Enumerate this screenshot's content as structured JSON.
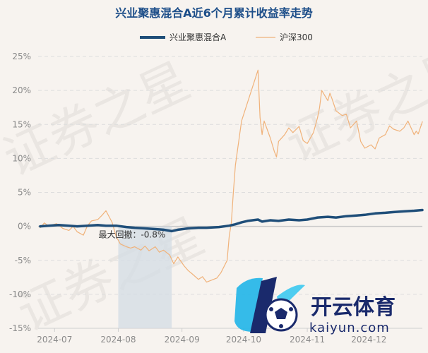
{
  "chart_data": {
    "type": "line",
    "title": "兴业聚惠混合A近6个月累计收益率走势",
    "legend_position": "top-center",
    "grid": true,
    "x_range": [
      "2024-06-23",
      "2024-12-27"
    ],
    "ylim": [
      -15,
      25
    ],
    "y_ticks": [
      25,
      20,
      15,
      10,
      5,
      0,
      -5,
      -10,
      -15
    ],
    "y_tick_labels": [
      "25%",
      "20%",
      "15%",
      "10%",
      "5%",
      "0%",
      "-5%",
      "-10%",
      "-15%"
    ],
    "x_ticks": [
      {
        "date": "2024-07-01",
        "label": "2024-07"
      },
      {
        "date": "2024-08-01",
        "label": "2024-08"
      },
      {
        "date": "2024-09-01",
        "label": "2024-09"
      },
      {
        "date": "2024-10-01",
        "label": "2024-10"
      },
      {
        "date": "2024-11-01",
        "label": "2024-11"
      },
      {
        "date": "2024-12-01",
        "label": "2024-12"
      }
    ],
    "drawdown": {
      "label": "最大回撤：-0.8%",
      "start": "2024-08-01",
      "end": "2024-08-27"
    },
    "series": [
      {
        "name": "兴业聚惠混合A",
        "color": "#1f4e79",
        "points": [
          [
            "2024-06-24",
            0.0
          ],
          [
            "2024-06-28",
            0.1
          ],
          [
            "2024-07-03",
            0.2
          ],
          [
            "2024-07-08",
            0.1
          ],
          [
            "2024-07-12",
            0.0
          ],
          [
            "2024-07-17",
            0.1
          ],
          [
            "2024-07-22",
            0.2
          ],
          [
            "2024-07-26",
            0.1
          ],
          [
            "2024-07-31",
            0.1
          ],
          [
            "2024-08-05",
            -0.1
          ],
          [
            "2024-08-09",
            -0.2
          ],
          [
            "2024-08-14",
            -0.3
          ],
          [
            "2024-08-19",
            -0.4
          ],
          [
            "2024-08-23",
            -0.5
          ],
          [
            "2024-08-27",
            -0.7
          ],
          [
            "2024-08-30",
            -0.5
          ],
          [
            "2024-09-04",
            -0.3
          ],
          [
            "2024-09-09",
            -0.2
          ],
          [
            "2024-09-13",
            -0.2
          ],
          [
            "2024-09-19",
            -0.1
          ],
          [
            "2024-09-24",
            0.1
          ],
          [
            "2024-09-27",
            0.3
          ],
          [
            "2024-09-30",
            0.6
          ],
          [
            "2024-10-03",
            0.8
          ],
          [
            "2024-10-08",
            1.0
          ],
          [
            "2024-10-10",
            0.7
          ],
          [
            "2024-10-14",
            0.9
          ],
          [
            "2024-10-18",
            0.8
          ],
          [
            "2024-10-23",
            1.0
          ],
          [
            "2024-10-28",
            0.9
          ],
          [
            "2024-11-01",
            1.0
          ],
          [
            "2024-11-06",
            1.3
          ],
          [
            "2024-11-11",
            1.4
          ],
          [
            "2024-11-15",
            1.3
          ],
          [
            "2024-11-20",
            1.5
          ],
          [
            "2024-11-25",
            1.6
          ],
          [
            "2024-11-29",
            1.7
          ],
          [
            "2024-12-04",
            1.9
          ],
          [
            "2024-12-09",
            2.0
          ],
          [
            "2024-12-13",
            2.1
          ],
          [
            "2024-12-18",
            2.2
          ],
          [
            "2024-12-23",
            2.3
          ],
          [
            "2024-12-27",
            2.4
          ]
        ]
      },
      {
        "name": "沪深300",
        "color": "#f0b27a",
        "points": [
          [
            "2024-06-24",
            -0.2
          ],
          [
            "2024-06-26",
            0.5
          ],
          [
            "2024-06-28",
            0.1
          ],
          [
            "2024-07-02",
            0.4
          ],
          [
            "2024-07-05",
            -0.3
          ],
          [
            "2024-07-08",
            -0.6
          ],
          [
            "2024-07-10",
            0.0
          ],
          [
            "2024-07-12",
            -0.8
          ],
          [
            "2024-07-15",
            -1.3
          ],
          [
            "2024-07-17",
            0.1
          ],
          [
            "2024-07-19",
            0.8
          ],
          [
            "2024-07-22",
            1.0
          ],
          [
            "2024-07-24",
            1.6
          ],
          [
            "2024-07-26",
            2.3
          ],
          [
            "2024-07-29",
            0.6
          ],
          [
            "2024-07-31",
            -1.5
          ],
          [
            "2024-08-02",
            -2.6
          ],
          [
            "2024-08-05",
            -3.0
          ],
          [
            "2024-08-07",
            -3.2
          ],
          [
            "2024-08-09",
            -3.0
          ],
          [
            "2024-08-12",
            -3.5
          ],
          [
            "2024-08-14",
            -2.9
          ],
          [
            "2024-08-16",
            -3.6
          ],
          [
            "2024-08-19",
            -3.0
          ],
          [
            "2024-08-21",
            -3.8
          ],
          [
            "2024-08-23",
            -3.5
          ],
          [
            "2024-08-26",
            -4.2
          ],
          [
            "2024-08-28",
            -5.5
          ],
          [
            "2024-08-30",
            -4.5
          ],
          [
            "2024-09-02",
            -5.8
          ],
          [
            "2024-09-04",
            -6.5
          ],
          [
            "2024-09-06",
            -7.0
          ],
          [
            "2024-09-09",
            -7.8
          ],
          [
            "2024-09-11",
            -7.4
          ],
          [
            "2024-09-13",
            -8.2
          ],
          [
            "2024-09-18",
            -7.6
          ],
          [
            "2024-09-20",
            -6.8
          ],
          [
            "2024-09-23",
            -5.0
          ],
          [
            "2024-09-24",
            -1.5
          ],
          [
            "2024-09-25",
            0.5
          ],
          [
            "2024-09-26",
            5.0
          ],
          [
            "2024-09-27",
            9.0
          ],
          [
            "2024-09-30",
            15.5
          ],
          [
            "2024-10-08",
            23.0
          ],
          [
            "2024-10-09",
            16.0
          ],
          [
            "2024-10-10",
            13.5
          ],
          [
            "2024-10-11",
            15.5
          ],
          [
            "2024-10-14",
            13.0
          ],
          [
            "2024-10-15",
            12.0
          ],
          [
            "2024-10-16",
            11.0
          ],
          [
            "2024-10-17",
            10.2
          ],
          [
            "2024-10-18",
            12.5
          ],
          [
            "2024-10-21",
            13.5
          ],
          [
            "2024-10-23",
            14.5
          ],
          [
            "2024-10-25",
            13.8
          ],
          [
            "2024-10-28",
            14.7
          ],
          [
            "2024-10-30",
            12.6
          ],
          [
            "2024-11-01",
            12.2
          ],
          [
            "2024-11-04",
            13.8
          ],
          [
            "2024-11-06",
            16.0
          ],
          [
            "2024-11-07",
            17.5
          ],
          [
            "2024-11-08",
            20.0
          ],
          [
            "2024-11-11",
            18.5
          ],
          [
            "2024-11-12",
            19.6
          ],
          [
            "2024-11-13",
            18.8
          ],
          [
            "2024-11-15",
            17.0
          ],
          [
            "2024-11-18",
            16.3
          ],
          [
            "2024-11-20",
            16.5
          ],
          [
            "2024-11-22",
            14.5
          ],
          [
            "2024-11-25",
            15.5
          ],
          [
            "2024-11-27",
            12.5
          ],
          [
            "2024-11-29",
            11.5
          ],
          [
            "2024-12-02",
            12.0
          ],
          [
            "2024-12-04",
            11.4
          ],
          [
            "2024-12-06",
            13.0
          ],
          [
            "2024-12-09",
            13.5
          ],
          [
            "2024-12-11",
            14.8
          ],
          [
            "2024-12-13",
            14.3
          ],
          [
            "2024-12-16",
            14.0
          ],
          [
            "2024-12-18",
            14.5
          ],
          [
            "2024-12-20",
            15.5
          ],
          [
            "2024-12-23",
            13.5
          ],
          [
            "2024-12-24",
            14.0
          ],
          [
            "2024-12-25",
            13.6
          ],
          [
            "2024-12-27",
            15.4
          ]
        ]
      }
    ]
  },
  "watermarks": [
    "证券之星",
    "证券之星",
    "证券之星"
  ],
  "logo": {
    "cn": "开云体育",
    "en": "kaiyun.com"
  }
}
